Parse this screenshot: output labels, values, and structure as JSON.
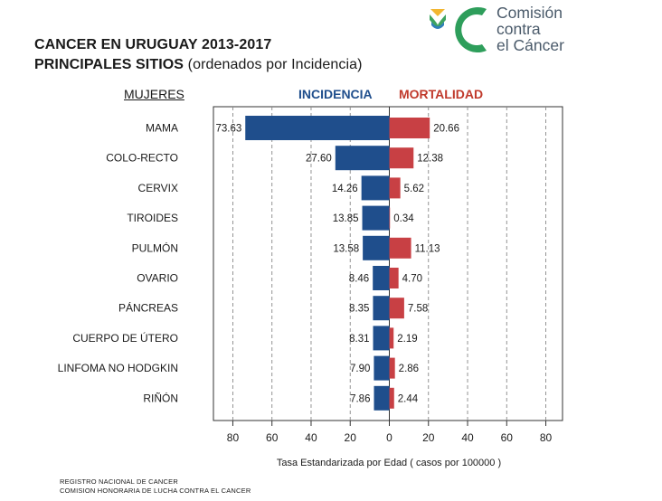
{
  "title": {
    "line1": "CANCER EN URUGUAY 2013-2017",
    "line2_main": "PRINCIPALES SITIOS",
    "line2_sub": " (ordenados por Incidencia)"
  },
  "logo": {
    "line1": "Comisión",
    "line2": "contra",
    "line3": "el Cáncer"
  },
  "headers": {
    "group": "MUJERES",
    "incidence": "INCIDENCIA",
    "mortality": "MORTALIDAD"
  },
  "colors": {
    "incidence": "#1f4e8c",
    "mortality": "#c84044",
    "logo_green": "#2e9e5b",
    "logo_blue": "#6a7d8f"
  },
  "chart_data": {
    "type": "bar",
    "orientation": "horizontal-diverging",
    "categories": [
      "MAMA",
      "COLO-RECTO",
      "CERVIX",
      "TIROIDES",
      "PULMÓN",
      "OVARIO",
      "PÁNCREAS",
      "CUERPO DE ÚTERO",
      "LINFOMA NO HODGKIN",
      "RIÑÓN"
    ],
    "series": [
      {
        "name": "INCIDENCIA",
        "side": "left",
        "values": [
          73.63,
          27.6,
          14.26,
          13.85,
          13.58,
          8.46,
          8.35,
          8.31,
          7.9,
          7.86
        ],
        "labels": [
          "73.63",
          "27.60",
          "14.26",
          "13.85",
          "13.58",
          "8.46",
          "8.35",
          "8.31",
          "7.90",
          "7.86"
        ]
      },
      {
        "name": "MORTALIDAD",
        "side": "right",
        "values": [
          20.66,
          12.38,
          5.62,
          0.34,
          11.13,
          4.7,
          7.58,
          2.19,
          2.86,
          2.44
        ],
        "labels": [
          "20.66",
          "12.38",
          "5.62",
          "0.34",
          "11.13",
          "4.70",
          "7.58",
          "2.19",
          "2.86",
          "2.44"
        ]
      }
    ],
    "xlim": [
      -90,
      90
    ],
    "x_ticks": [
      -80,
      -60,
      -40,
      -20,
      0,
      20,
      40,
      60,
      80
    ],
    "x_tick_labels": [
      "80",
      "60",
      "40",
      "20",
      "0",
      "20",
      "40",
      "60",
      "80"
    ],
    "xlabel": "Tasa Estandarizada por Edad ( casos por 100000 )",
    "grid": "vertical-dashed"
  },
  "footer": {
    "line1": "REGISTRO NACIONAL DE CANCER",
    "line2": "COMISION HONORARIA DE LUCHA CONTRA EL CANCER"
  }
}
